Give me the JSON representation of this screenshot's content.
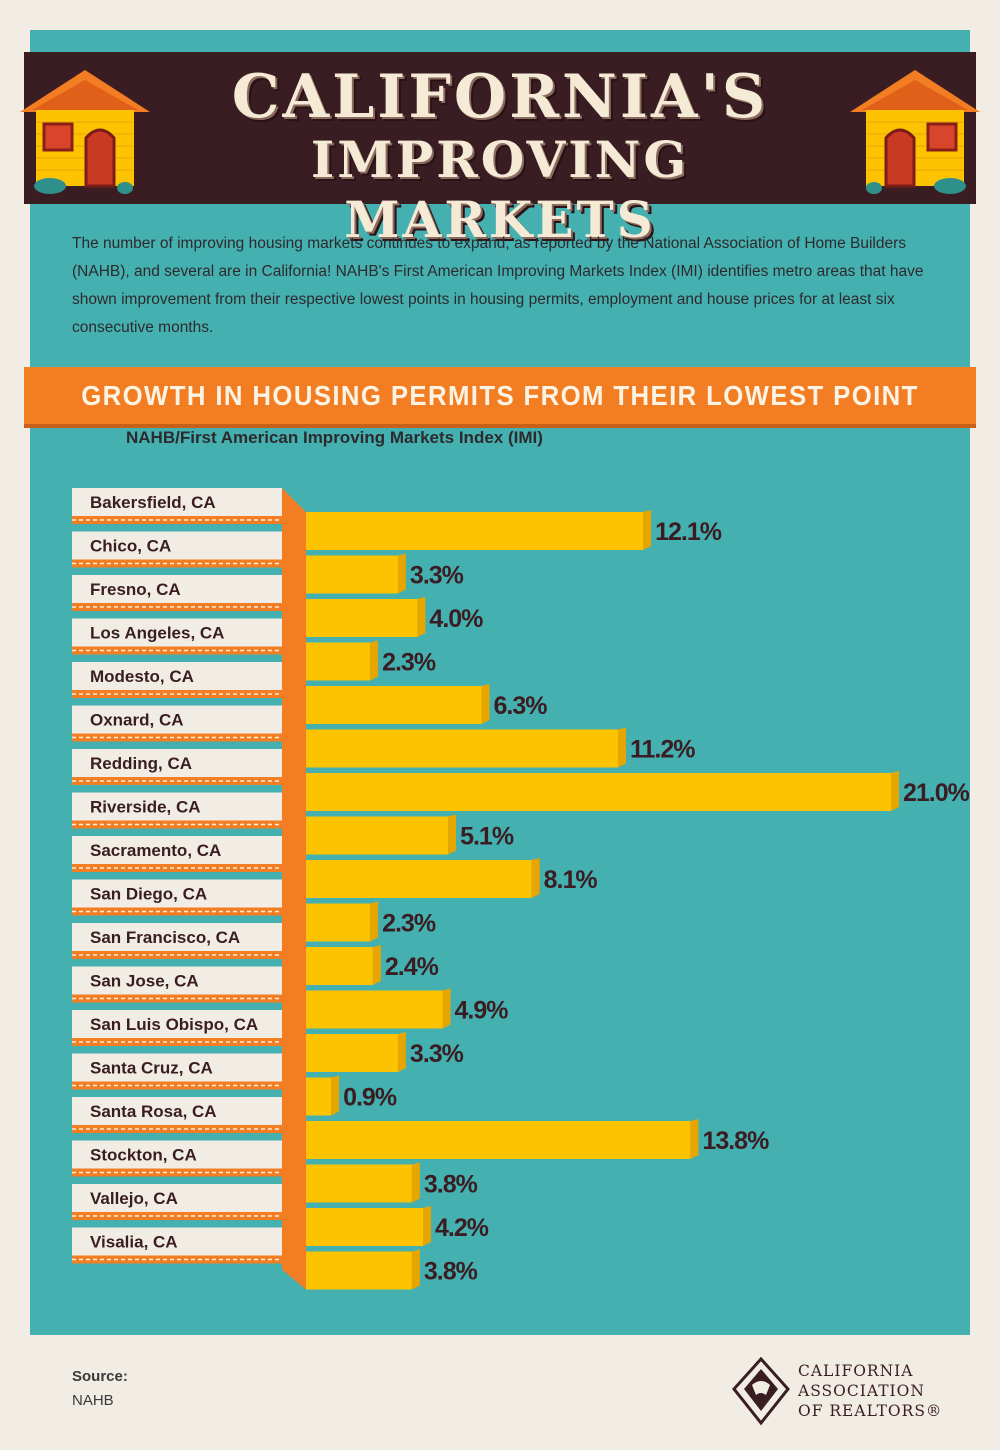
{
  "header": {
    "title_line1": "CALIFORNIA'S",
    "title_line2": "IMPROVING MARKETS"
  },
  "intro": "The number of improving housing markets continues to expand, as reported by the National Association of Home Builders (NAHB), and several are in California!  NAHB's First American Improving Markets Index (IMI) identifies metro areas that have shown improvement from their respective lowest points in housing permits, employment and house prices for at least six consecutive months.",
  "colors": {
    "teal": "#45b0b0",
    "orange": "#f37d22",
    "bar": "#fdc300",
    "dark": "#3a1d22",
    "cream": "#f1ede4"
  },
  "chart_data": {
    "type": "bar",
    "orientation": "horizontal",
    "title": "GROWTH IN HOUSING PERMITS FROM THEIR LOWEST POINT",
    "subtitle": "NAHB/First American Improving Markets Index (IMI)",
    "unit": "%",
    "categories": [
      "Bakersfield, CA",
      "Chico, CA",
      "Fresno, CA",
      "Los Angeles, CA",
      "Modesto, CA",
      "Oxnard, CA",
      "Redding, CA",
      "Riverside, CA",
      "Sacramento, CA",
      "San Diego, CA",
      "San Francisco, CA",
      "San Jose, CA",
      "San Luis Obispo, CA",
      "Santa Cruz, CA",
      "Santa Rosa, CA",
      "Stockton, CA",
      "Vallejo, CA",
      "Visalia, CA"
    ],
    "values": [
      12.1,
      3.3,
      4.0,
      2.3,
      6.3,
      11.2,
      21.0,
      5.1,
      8.1,
      2.3,
      2.4,
      4.9,
      3.3,
      0.9,
      13.8,
      3.8,
      4.2,
      3.8
    ],
    "labels": [
      "12.1%",
      "3.3%",
      "4.0%",
      "2.3%",
      "6.3%",
      "11.2%",
      "21.0%",
      "5.1%",
      "8.1%",
      "2.3%",
      "2.4%",
      "4.9%",
      "3.3%",
      "0.9%",
      "13.8%",
      "3.8%",
      "4.2%",
      "3.8%"
    ],
    "xlim": [
      0,
      21.0
    ]
  },
  "footer": {
    "source_label": "Source:",
    "source_value": "NAHB",
    "logo_lines": [
      "CALIFORNIA",
      "ASSOCIATION",
      "OF REALTORS®"
    ]
  }
}
